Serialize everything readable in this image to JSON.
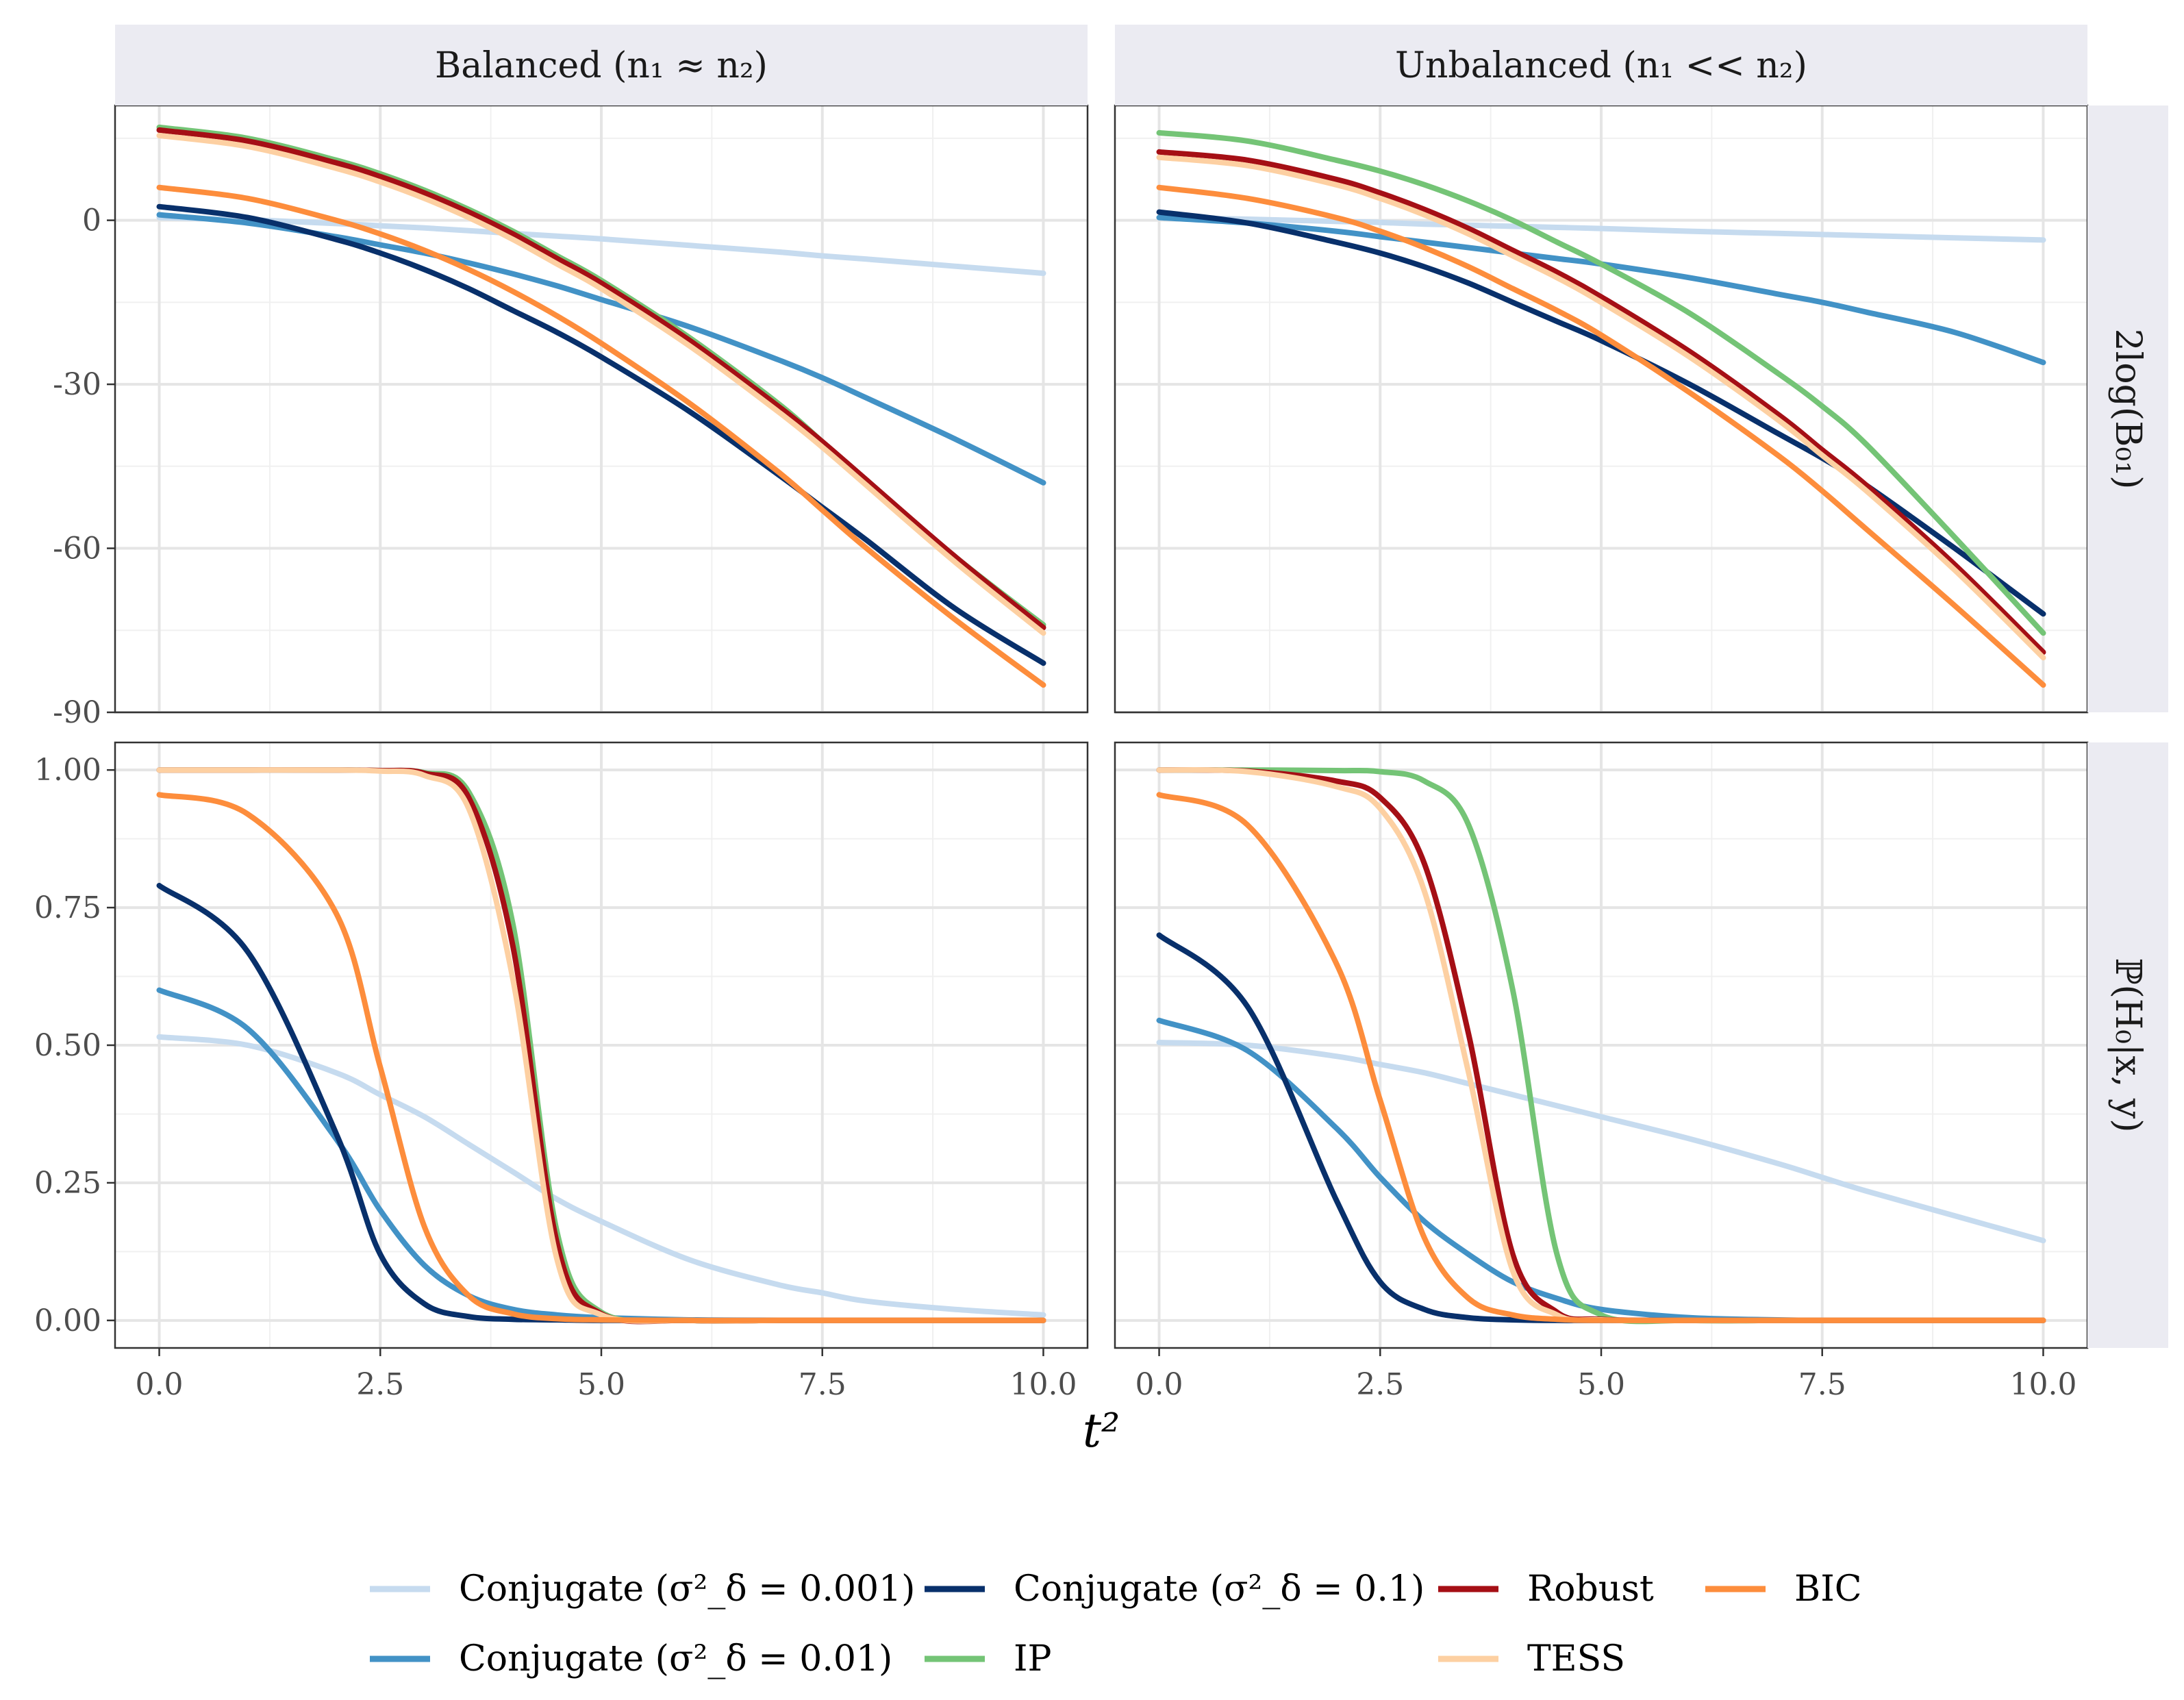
{
  "chart_data": {
    "type": "line",
    "xlabel": "t²",
    "x_ticks": [
      "0.0",
      "2.5",
      "5.0",
      "7.5",
      "10.0"
    ],
    "xlim": [
      -0.5,
      10.5
    ],
    "columns": [
      "Balanced (n₁ ≈ n₂)",
      "Unbalanced (n₁ << n₂)"
    ],
    "rows": [
      {
        "label": "2log(B₀₁)",
        "ylim": [
          -90,
          21
        ],
        "y_ticks": [
          0,
          -30,
          -60,
          -90
        ],
        "y_tick_labels": [
          "0",
          "-30",
          "-60",
          "-90"
        ]
      },
      {
        "label": "ℙ(H₀|x, y)",
        "ylim": [
          -0.05,
          1.05
        ],
        "y_ticks": [
          0,
          0.25,
          0.5,
          0.75,
          1.0
        ],
        "y_tick_labels": [
          "0.00",
          "0.25",
          "0.50",
          "0.75",
          "1.00"
        ]
      }
    ],
    "x": [
      0,
      1,
      2,
      2.5,
      3,
      3.5,
      4,
      4.5,
      5,
      6,
      7,
      7.5,
      8,
      9,
      10
    ],
    "series_styles": [
      {
        "name": "Conjugate (σ²_δ = 0.001)",
        "color": "#c6dbef"
      },
      {
        "name": "Conjugate (σ²_δ = 0.01)",
        "color": "#4292c6"
      },
      {
        "name": "Conjugate (σ²_δ = 0.1)",
        "color": "#08306b"
      },
      {
        "name": "IP",
        "color": "#74c476"
      },
      {
        "name": "Robust",
        "color": "#a50f15"
      },
      {
        "name": "TESS",
        "color": "#fdd0a2"
      },
      {
        "name": "BIC",
        "color": "#fd8d3c"
      }
    ],
    "panels": [
      {
        "row": 0,
        "col": 0,
        "series": [
          {
            "name": "Conjugate (σ²_δ = 0.001)",
            "values": [
              0.5,
              0.1,
              -0.6,
              -1.0,
              -1.4,
              -1.9,
              -2.4,
              -2.9,
              -3.4,
              -4.6,
              -5.8,
              -6.5,
              -7.1,
              -8.4,
              -9.7
            ]
          },
          {
            "name": "Conjugate (σ²_δ = 0.01)",
            "values": [
              1,
              -0.5,
              -3,
              -4.5,
              -6,
              -7.8,
              -9.8,
              -12,
              -14.5,
              -19.5,
              -25.5,
              -28.8,
              -32.5,
              -40,
              -48
            ]
          },
          {
            "name": "Conjugate (σ²_δ = 0.1)",
            "values": [
              2.5,
              0.5,
              -3.5,
              -6,
              -9,
              -12.5,
              -16.5,
              -20.5,
              -25,
              -35,
              -46.5,
              -52.5,
              -58.5,
              -71,
              -81
            ]
          },
          {
            "name": "IP",
            "values": [
              17,
              15,
              11,
              8.5,
              5.5,
              2,
              -2,
              -6.5,
              -11,
              -21.5,
              -33.5,
              -40.5,
              -47.5,
              -61.5,
              -74
            ]
          },
          {
            "name": "Robust",
            "values": [
              16.5,
              14.5,
              10.5,
              8,
              5,
              1.5,
              -2.5,
              -7,
              -11.5,
              -22,
              -34,
              -40.5,
              -47.5,
              -61.5,
              -74.5
            ]
          },
          {
            "name": "TESS",
            "values": [
              15.5,
              13.5,
              9.5,
              7,
              4,
              0.5,
              -3.5,
              -8,
              -12.5,
              -23,
              -35,
              -41.5,
              -48.5,
              -62.5,
              -75.5
            ]
          },
          {
            "name": "BIC",
            "values": [
              6,
              4,
              0,
              -2.5,
              -5.5,
              -9,
              -13,
              -17.5,
              -22.5,
              -33.5,
              -46,
              -53,
              -60,
              -73,
              -85
            ]
          }
        ]
      },
      {
        "row": 0,
        "col": 1,
        "series": [
          {
            "name": "Conjugate (σ²_δ = 0.001)",
            "values": [
              0.5,
              0.2,
              -0.2,
              -0.4,
              -0.7,
              -0.9,
              -1.1,
              -1.3,
              -1.5,
              -2.0,
              -2.4,
              -2.6,
              -2.8,
              -3.2,
              -3.6
            ]
          },
          {
            "name": "Conjugate (σ²_δ = 0.01)",
            "values": [
              0.5,
              -0.5,
              -2,
              -3,
              -4,
              -5,
              -6,
              -7,
              -8,
              -10.5,
              -13.5,
              -15,
              -16.8,
              -20.5,
              -26
            ]
          },
          {
            "name": "Conjugate (σ²_δ = 0.1)",
            "values": [
              1.5,
              -0.5,
              -4,
              -6,
              -8.5,
              -11.5,
              -15,
              -18.5,
              -22,
              -30,
              -39,
              -43.5,
              -48.5,
              -60,
              -72
            ]
          },
          {
            "name": "IP",
            "values": [
              16,
              14.5,
              11,
              9,
              6.5,
              3.5,
              0,
              -4,
              -8,
              -17,
              -28,
              -34,
              -41,
              -58,
              -75.5
            ]
          },
          {
            "name": "Robust",
            "values": [
              12.5,
              11,
              7.5,
              5,
              2,
              -1.5,
              -5.5,
              -9.5,
              -14,
              -24,
              -35.5,
              -42,
              -48.5,
              -63,
              -79
            ]
          },
          {
            "name": "TESS",
            "values": [
              11.5,
              10,
              6.5,
              4,
              1,
              -2.5,
              -6.5,
              -10.5,
              -15,
              -25,
              -36.5,
              -43,
              -49.5,
              -64,
              -80
            ]
          },
          {
            "name": "BIC",
            "values": [
              6,
              4,
              0.5,
              -2,
              -5,
              -8.5,
              -12.5,
              -16.5,
              -21,
              -31.5,
              -43,
              -49.5,
              -56.5,
              -70.5,
              -85
            ]
          }
        ]
      },
      {
        "row": 1,
        "col": 0,
        "series": [
          {
            "name": "Conjugate (σ²_δ = 0.001)",
            "values": [
              0.515,
              0.5,
              0.45,
              0.41,
              0.37,
              0.32,
              0.27,
              0.22,
              0.18,
              0.11,
              0.065,
              0.05,
              0.035,
              0.02,
              0.01
            ]
          },
          {
            "name": "Conjugate (σ²_δ = 0.01)",
            "values": [
              0.6,
              0.53,
              0.33,
              0.2,
              0.1,
              0.045,
              0.02,
              0.01,
              0.005,
              0.001,
              0,
              0,
              0,
              0,
              0
            ]
          },
          {
            "name": "Conjugate (σ²_δ = 0.1)",
            "values": [
              0.79,
              0.67,
              0.34,
              0.12,
              0.03,
              0.007,
              0.002,
              0.001,
              0,
              0,
              0,
              0,
              0,
              0,
              0
            ]
          },
          {
            "name": "IP",
            "values": [
              1.0,
              1.0,
              1.0,
              0.999,
              0.995,
              0.96,
              0.72,
              0.16,
              0.015,
              0,
              0,
              0,
              0,
              0,
              0
            ]
          },
          {
            "name": "Robust",
            "values": [
              1.0,
              1.0,
              1.0,
              0.999,
              0.994,
              0.95,
              0.68,
              0.14,
              0.012,
              0,
              0,
              0,
              0,
              0,
              0
            ]
          },
          {
            "name": "TESS",
            "values": [
              1.0,
              1.0,
              1.0,
              0.998,
              0.99,
              0.93,
              0.62,
              0.11,
              0.01,
              0,
              0,
              0,
              0,
              0,
              0
            ]
          },
          {
            "name": "BIC",
            "values": [
              0.955,
              0.92,
              0.74,
              0.46,
              0.17,
              0.045,
              0.012,
              0.003,
              0.001,
              0,
              0,
              0,
              0,
              0,
              0
            ]
          }
        ]
      },
      {
        "row": 1,
        "col": 1,
        "series": [
          {
            "name": "Conjugate (σ²_δ = 0.001)",
            "values": [
              0.505,
              0.5,
              0.48,
              0.465,
              0.45,
              0.43,
              0.41,
              0.39,
              0.37,
              0.33,
              0.285,
              0.26,
              0.235,
              0.19,
              0.145
            ]
          },
          {
            "name": "Conjugate (σ²_δ = 0.01)",
            "values": [
              0.545,
              0.49,
              0.35,
              0.26,
              0.18,
              0.12,
              0.07,
              0.04,
              0.02,
              0.005,
              0.001,
              0,
              0,
              0,
              0
            ]
          },
          {
            "name": "Conjugate (σ²_δ = 0.1)",
            "values": [
              0.7,
              0.57,
              0.22,
              0.07,
              0.02,
              0.005,
              0.001,
              0,
              0,
              0,
              0,
              0,
              0,
              0,
              0
            ]
          },
          {
            "name": "IP",
            "values": [
              1.0,
              1.0,
              0.999,
              0.997,
              0.98,
              0.9,
              0.6,
              0.12,
              0.01,
              0,
              0,
              0,
              0,
              0,
              0
            ]
          },
          {
            "name": "Robust",
            "values": [
              1.0,
              0.998,
              0.98,
              0.95,
              0.83,
              0.52,
              0.12,
              0.015,
              0.002,
              0,
              0,
              0,
              0,
              0,
              0
            ]
          },
          {
            "name": "TESS",
            "values": [
              1.0,
              0.997,
              0.97,
              0.93,
              0.78,
              0.45,
              0.09,
              0.01,
              0.001,
              0,
              0,
              0,
              0,
              0,
              0
            ]
          },
          {
            "name": "BIC",
            "values": [
              0.955,
              0.9,
              0.65,
              0.4,
              0.15,
              0.04,
              0.01,
              0.002,
              0,
              0,
              0,
              0,
              0,
              0,
              0
            ]
          }
        ]
      }
    ],
    "legend": {
      "position": "bottom",
      "entries": [
        {
          "label": "Conjugate (σ²_δ = 0.001)",
          "color": "#c6dbef"
        },
        {
          "label": "Conjugate (σ²_δ = 0.01)",
          "color": "#4292c6"
        },
        {
          "label": "Conjugate (σ²_δ = 0.1)",
          "color": "#08306b"
        },
        {
          "label": "IP",
          "color": "#74c476"
        },
        {
          "label": "Robust",
          "color": "#a50f15"
        },
        {
          "label": "TESS",
          "color": "#fdd0a2"
        },
        {
          "label": "BIC",
          "color": "#fd8d3c"
        }
      ]
    }
  }
}
